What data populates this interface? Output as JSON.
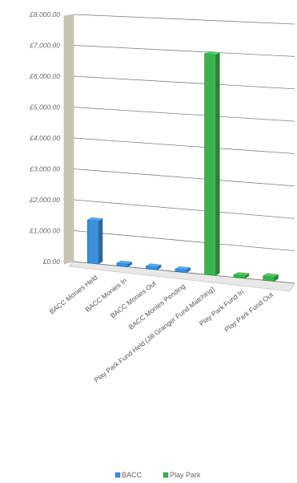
{
  "chart_data": {
    "type": "bar",
    "title": "",
    "xlabel": "",
    "ylabel": "",
    "ylim": [
      0,
      8000
    ],
    "y_ticks": [
      "£0.00",
      "£1,000.00",
      "£2,000.00",
      "£3,000.00",
      "£4,000.00",
      "£5,000.00",
      "£6,000.00",
      "£7,000.00",
      "£8,000.00"
    ],
    "categories": [
      "BACC Monies Held",
      "BACC Monies In",
      "BACC Monies Out",
      "BACC Monies Pending",
      "Play Park Fund Held (Jill Granger Fund Matching)",
      "Play Park Fund In",
      "Play Park Fund Out"
    ],
    "series": [
      {
        "name": "BACC",
        "color": "#3f8fd8",
        "values": [
          1400,
          0,
          0,
          0,
          null,
          null,
          null
        ]
      },
      {
        "name": "Play Park",
        "color": "#3fb04f",
        "values": [
          null,
          null,
          null,
          null,
          7150,
          0,
          150
        ]
      }
    ],
    "grid": true,
    "legend_position": "bottom",
    "style": "3d-perspective"
  }
}
